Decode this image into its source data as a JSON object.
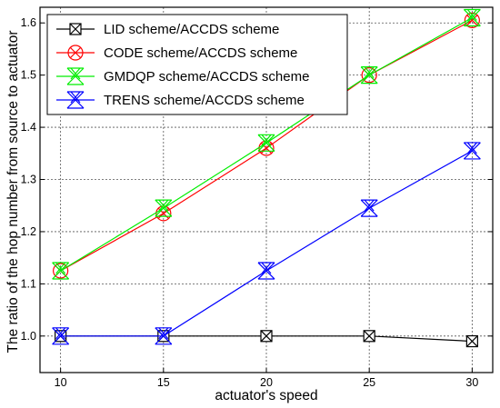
{
  "chart_data": {
    "type": "line",
    "title": "",
    "xlabel": "actuator's speed",
    "ylabel": "The ratio of the hop number from source to actuator",
    "x": [
      10,
      15,
      20,
      25,
      30
    ],
    "xlim": [
      9,
      31
    ],
    "ylim": [
      0.93,
      1.63
    ],
    "xticks": [
      "10",
      "15",
      "20",
      "25",
      "30"
    ],
    "yticks": [
      "1.0",
      "1.1",
      "1.2",
      "1.3",
      "1.4",
      "1.5",
      "1.6"
    ],
    "ytick_values": [
      1.0,
      1.1,
      1.2,
      1.3,
      1.4,
      1.5,
      1.6
    ],
    "grid": "dashed",
    "legend_position": "top-left",
    "series": [
      {
        "name": "LID scheme/ACCDS scheme",
        "color": "#000000",
        "marker": "boxed-x",
        "values": [
          1.0,
          1.0,
          1.0,
          1.0,
          0.99
        ]
      },
      {
        "name": "CODE scheme/ACCDS scheme",
        "color": "#ff0000",
        "marker": "circled-x",
        "values": [
          1.125,
          1.235,
          1.36,
          1.5,
          1.605
        ]
      },
      {
        "name": "GMDQP scheme/ACCDS scheme",
        "color": "#00ee00",
        "marker": "double-x",
        "values": [
          1.125,
          1.245,
          1.37,
          1.5,
          1.61
        ]
      },
      {
        "name": "TRENS scheme/ACCDS scheme",
        "color": "#0000ff",
        "marker": "double-x",
        "values": [
          1.0,
          1.0,
          1.125,
          1.245,
          1.355
        ]
      }
    ]
  }
}
